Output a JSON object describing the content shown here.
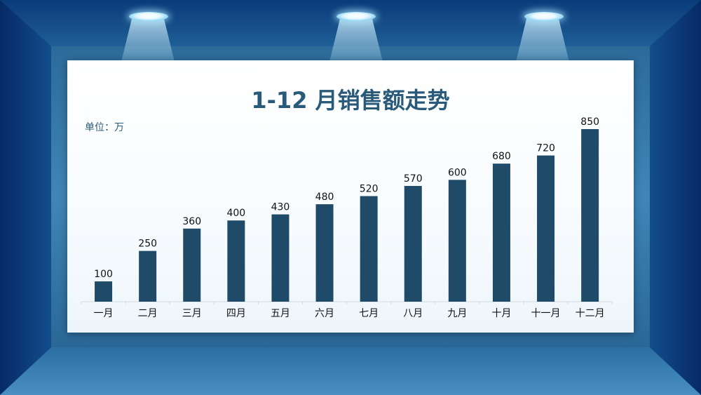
{
  "chart_data": {
    "type": "bar",
    "title": "1-12 月销售额走势",
    "unit_label": "单位：万",
    "categories": [
      "一月",
      "二月",
      "三月",
      "四月",
      "五月",
      "六月",
      "七月",
      "八月",
      "九月",
      "十月",
      "十一月",
      "十二月"
    ],
    "values": [
      100,
      250,
      360,
      400,
      430,
      480,
      520,
      570,
      600,
      680,
      720,
      850
    ],
    "ylim": [
      0,
      850
    ],
    "grid": false,
    "legend": "none",
    "bar_color": "#1f4b69"
  }
}
